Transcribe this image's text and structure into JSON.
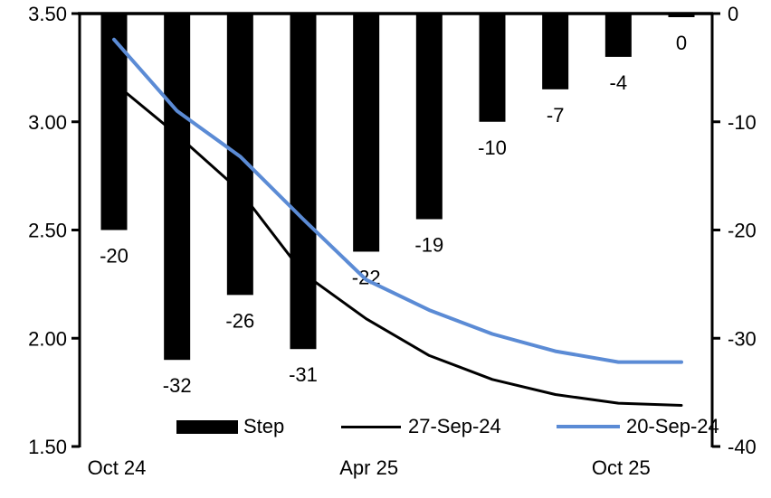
{
  "chart_data": {
    "type": "combo",
    "title": "",
    "n_points": 10,
    "x_tick_labels": [
      {
        "label": "Oct 24",
        "index": 0
      },
      {
        "label": "Apr 25",
        "index": 4
      },
      {
        "label": "Oct 25",
        "index": 8
      }
    ],
    "left_axis": {
      "min": 1.5,
      "max": 3.5,
      "tick_labels": [
        "3.50",
        "3.00",
        "2.50",
        "2.00",
        "1.50"
      ],
      "tick_values": [
        3.5,
        3.0,
        2.5,
        2.0,
        1.5
      ]
    },
    "right_axis": {
      "min": -40,
      "max": 0,
      "tick_labels": [
        "0",
        "-10",
        "-20",
        "-30",
        "-40"
      ],
      "tick_values": [
        0,
        -10,
        -20,
        -30,
        -40
      ]
    },
    "grid": false,
    "legend_position": "bottom",
    "series": [
      {
        "name": "Step",
        "type": "bar",
        "axis": "right",
        "color": "#000000",
        "values": [
          -20,
          -32,
          -26,
          -31,
          -22,
          -19,
          -10,
          -7,
          -4,
          0
        ],
        "labels": [
          "-20",
          "-32",
          "-26",
          "-31",
          "-22",
          "-19",
          "-10",
          "-7",
          "-4",
          "0"
        ]
      },
      {
        "name": "27-Sep-24",
        "type": "line",
        "axis": "left",
        "color": "#000000",
        "values": [
          3.18,
          2.94,
          2.68,
          2.3,
          2.09,
          1.92,
          1.81,
          1.74,
          1.7,
          1.69
        ]
      },
      {
        "name": "20-Sep-24",
        "type": "line",
        "axis": "left",
        "color": "#5B8BD5",
        "values": [
          3.38,
          3.05,
          2.84,
          2.55,
          2.27,
          2.13,
          2.02,
          1.94,
          1.89,
          1.89
        ]
      }
    ]
  }
}
